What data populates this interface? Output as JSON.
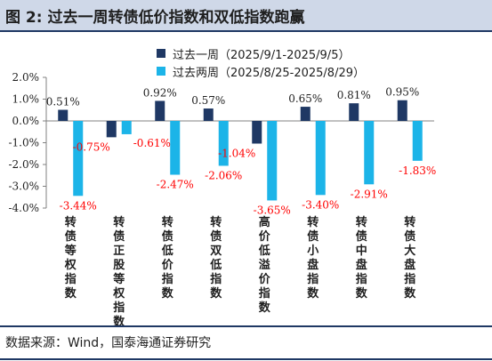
{
  "title": "图 2:  过去一周转债低价指数和双低指数跑赢",
  "source": "数据来源：Wind，国泰海通证券研究",
  "colors": {
    "series1": "#1f3864",
    "series2": "#1cb4e8",
    "neg_label": "#ff0000",
    "pos_label": "#1f1f1f"
  },
  "chart_data": {
    "type": "bar",
    "categories": [
      "转债等权指数",
      "转债正股等权指数",
      "转债低价指数",
      "转债双低指数",
      "高价低溢价指数",
      "转债小盘指数",
      "转债中盘指数",
      "转债大盘指数"
    ],
    "series": [
      {
        "name": "过去一周（2025/9/1-2025/9/5）",
        "values": [
          0.51,
          -0.75,
          0.92,
          0.57,
          -1.04,
          0.65,
          0.81,
          0.95
        ],
        "labels": [
          "0.51%",
          "-0.75%",
          "0.92%",
          "0.57%",
          "-1.04%",
          "0.65%",
          "0.81%",
          "0.95%"
        ]
      },
      {
        "name": "过去两周（2025/8/25-2025/8/29）",
        "values": [
          -3.44,
          -0.61,
          -2.47,
          -2.06,
          -3.65,
          -3.4,
          -2.91,
          -1.83
        ],
        "labels": [
          "-3.44%",
          "-0.61%",
          "-2.47%",
          "-2.06%",
          "-3.65%",
          "-3.40%",
          "-2.91%",
          "-1.83%"
        ]
      }
    ],
    "yticks": [
      "2.0%",
      "1.0%",
      "0.0%",
      "-1.0%",
      "-2.0%",
      "-3.0%",
      "-4.0%"
    ],
    "ytick_values": [
      2,
      1,
      0,
      -1,
      -2,
      -3,
      -4
    ],
    "ylim": [
      -4,
      2
    ],
    "legend_position": "top-center",
    "grid": false
  }
}
